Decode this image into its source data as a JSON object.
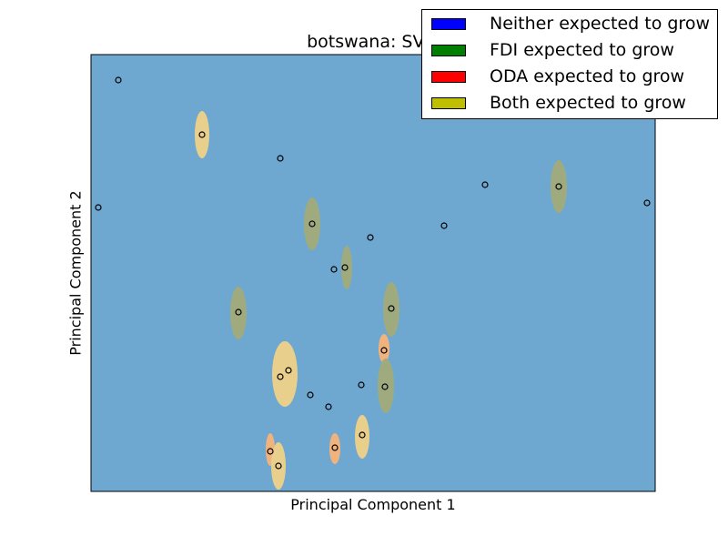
{
  "chart_data": {
    "type": "scatter",
    "title": "botswana: SVM",
    "xlabel": "Principal Component 1",
    "ylabel": "Principal Component 2",
    "xlim": [
      0,
      620
    ],
    "ylim": [
      0,
      480
    ],
    "grid": false,
    "legend_placement": "top-right",
    "background_color": "#6ea8d0",
    "legend": [
      {
        "label": "Neither expected to grow",
        "color": "#0000ff"
      },
      {
        "label": "FDI expected to grow",
        "color": "#008000"
      },
      {
        "label": "ODA expected to grow",
        "color": "#ff0000"
      },
      {
        "label": "Both expected to grow",
        "color": "#bfbf00"
      }
    ],
    "region_colors": {
      "Both expected to grow": "#e9cf8c",
      "FDI expected to grow": "#9fab7f",
      "ODA expected to grow": "#f0b37e"
    },
    "points": [
      {
        "x": 30,
        "y": 452
      },
      {
        "x": 8,
        "y": 312
      },
      {
        "x": 208,
        "y": 366
      },
      {
        "x": 122,
        "y": 392
      },
      {
        "x": 433,
        "y": 337
      },
      {
        "x": 611,
        "y": 317
      },
      {
        "x": 388,
        "y": 292
      },
      {
        "x": 514,
        "y": 335
      },
      {
        "x": 243,
        "y": 294
      },
      {
        "x": 307,
        "y": 279
      },
      {
        "x": 267,
        "y": 244
      },
      {
        "x": 279,
        "y": 246
      },
      {
        "x": 330,
        "y": 201
      },
      {
        "x": 162,
        "y": 197
      },
      {
        "x": 322,
        "y": 155
      },
      {
        "x": 217,
        "y": 133
      },
      {
        "x": 208,
        "y": 126
      },
      {
        "x": 241,
        "y": 106
      },
      {
        "x": 261,
        "y": 93
      },
      {
        "x": 297,
        "y": 117
      },
      {
        "x": 323,
        "y": 115
      },
      {
        "x": 298,
        "y": 62
      },
      {
        "x": 197,
        "y": 44
      },
      {
        "x": 206,
        "y": 28
      },
      {
        "x": 268,
        "y": 48
      }
    ],
    "regions": [
      {
        "class": "Both expected to grow",
        "cx": 122,
        "cy": 392,
        "rx": 8,
        "ry": 26
      },
      {
        "class": "FDI expected to grow",
        "cx": 243,
        "cy": 294,
        "rx": 9,
        "ry": 29
      },
      {
        "class": "FDI expected to grow",
        "cx": 514,
        "cy": 335,
        "rx": 9,
        "ry": 29
      },
      {
        "class": "FDI expected to grow",
        "cx": 281,
        "cy": 246,
        "rx": 6,
        "ry": 24
      },
      {
        "class": "FDI expected to grow",
        "cx": 330,
        "cy": 200,
        "rx": 9,
        "ry": 30
      },
      {
        "class": "FDI expected to grow",
        "cx": 162,
        "cy": 196,
        "rx": 9,
        "ry": 29
      },
      {
        "class": "ODA expected to grow",
        "cx": 322,
        "cy": 157,
        "rx": 6,
        "ry": 16
      },
      {
        "class": "Both expected to grow",
        "cx": 213,
        "cy": 129,
        "rx": 14,
        "ry": 36
      },
      {
        "class": "FDI expected to grow",
        "cx": 324,
        "cy": 116,
        "rx": 9,
        "ry": 30
      },
      {
        "class": "Both expected to grow",
        "cx": 298,
        "cy": 60,
        "rx": 8,
        "ry": 24
      },
      {
        "class": "ODA expected to grow",
        "cx": 268,
        "cy": 47,
        "rx": 6,
        "ry": 17
      },
      {
        "class": "ODA expected to grow",
        "cx": 197,
        "cy": 46,
        "rx": 5,
        "ry": 18
      },
      {
        "class": "Both expected to grow",
        "cx": 206,
        "cy": 28,
        "rx": 8,
        "ry": 26
      }
    ]
  }
}
